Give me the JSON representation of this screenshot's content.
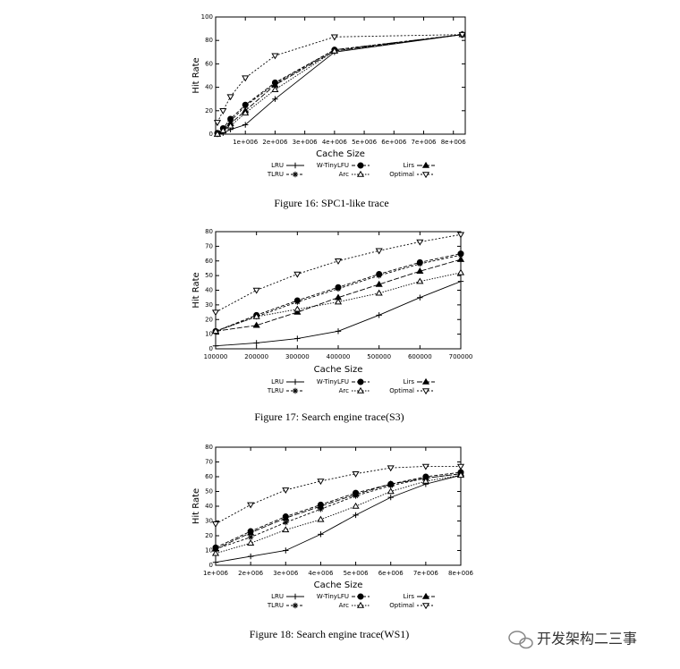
{
  "chart_data": [
    {
      "type": "line",
      "caption": "Figure 16: SPC1-like trace",
      "xlabel": "Cache Size",
      "ylabel": "Hit Rate",
      "x": [
        60000,
        250000,
        500000,
        1000000,
        2000000,
        4000000,
        8300000
      ],
      "xlim": [
        0,
        8400000
      ],
      "xticks": [
        {
          "value": 1000000,
          "label": "1e+006"
        },
        {
          "value": 2000000,
          "label": "2e+006"
        },
        {
          "value": 3000000,
          "label": "3e+006"
        },
        {
          "value": 4000000,
          "label": "4e+006"
        },
        {
          "value": 5000000,
          "label": "5e+006"
        },
        {
          "value": 6000000,
          "label": "6e+006"
        },
        {
          "value": 7000000,
          "label": "7e+006"
        },
        {
          "value": 8000000,
          "label": "8e+006"
        }
      ],
      "ylim": [
        0,
        100
      ],
      "yticks": [
        0,
        20,
        40,
        60,
        80,
        100
      ],
      "series": [
        {
          "name": "LRU",
          "color": "#000000",
          "values": [
            0,
            1,
            4,
            8,
            30,
            70,
            85
          ]
        },
        {
          "name": "W-TinyLFU",
          "color": "#000000",
          "values": [
            1,
            5,
            13,
            25,
            44,
            72,
            85
          ]
        },
        {
          "name": "Lirs",
          "color": "#000000",
          "values": [
            0,
            3,
            9,
            20,
            42,
            71,
            85
          ]
        },
        {
          "name": "TLRU",
          "color": "#000000",
          "values": [
            1,
            4,
            11,
            24,
            43,
            72,
            85
          ]
        },
        {
          "name": "Arc",
          "color": "#000000",
          "values": [
            0,
            3,
            7,
            18,
            38,
            71,
            85
          ]
        },
        {
          "name": "Optimal",
          "color": "#000000",
          "values": [
            10,
            20,
            32,
            48,
            67,
            83,
            85
          ]
        }
      ]
    },
    {
      "type": "line",
      "caption": "Figure 17: Search engine trace(S3)",
      "xlabel": "Cache Size",
      "ylabel": "Hit Rate",
      "x": [
        100000,
        200000,
        300000,
        400000,
        500000,
        600000,
        700000
      ],
      "xlim": [
        100000,
        700000
      ],
      "xticks": [
        100000,
        200000,
        300000,
        400000,
        500000,
        600000,
        700000
      ],
      "ylim": [
        0,
        80
      ],
      "yticks": [
        0,
        10,
        20,
        30,
        40,
        50,
        60,
        70,
        80
      ],
      "series": [
        {
          "name": "LRU",
          "color": "#000000",
          "values": [
            2,
            4,
            7,
            12,
            23,
            35,
            46
          ]
        },
        {
          "name": "W-TinyLFU",
          "color": "#000000",
          "values": [
            12,
            23,
            33,
            42,
            51,
            59,
            65
          ]
        },
        {
          "name": "Lirs",
          "color": "#000000",
          "values": [
            12,
            16,
            25,
            35,
            44,
            53,
            61
          ]
        },
        {
          "name": "TLRU",
          "color": "#000000",
          "values": [
            12,
            22,
            32,
            41,
            50,
            58,
            64
          ]
        },
        {
          "name": "Arc",
          "color": "#000000",
          "values": [
            12,
            22,
            27,
            32,
            38,
            46,
            52
          ]
        },
        {
          "name": "Optimal",
          "color": "#000000",
          "values": [
            25,
            40,
            51,
            60,
            67,
            73,
            78
          ]
        }
      ]
    },
    {
      "type": "line",
      "caption": "Figure 18: Search engine trace(WS1)",
      "xlabel": "Cache Size",
      "ylabel": "Hit Rate",
      "x": [
        1000000,
        2000000,
        3000000,
        4000000,
        5000000,
        6000000,
        7000000,
        8000000
      ],
      "xlim": [
        1000000,
        8000000
      ],
      "xticks": [
        {
          "value": 1000000,
          "label": "1e+006"
        },
        {
          "value": 2000000,
          "label": "2e+006"
        },
        {
          "value": 3000000,
          "label": "3e+006"
        },
        {
          "value": 4000000,
          "label": "4e+006"
        },
        {
          "value": 5000000,
          "label": "5e+006"
        },
        {
          "value": 6000000,
          "label": "6e+006"
        },
        {
          "value": 7000000,
          "label": "7e+006"
        },
        {
          "value": 8000000,
          "label": "8e+006"
        }
      ],
      "ylim": [
        0,
        80
      ],
      "yticks": [
        0,
        10,
        20,
        30,
        40,
        50,
        60,
        70,
        80
      ],
      "series": [
        {
          "name": "LRU",
          "color": "#000000",
          "values": [
            2,
            6,
            10,
            21,
            34,
            46,
            55,
            61
          ]
        },
        {
          "name": "W-TinyLFU",
          "color": "#000000",
          "values": [
            12,
            23,
            33,
            41,
            49,
            55,
            60,
            63
          ]
        },
        {
          "name": "Lirs",
          "color": "#000000",
          "values": [
            11,
            22,
            32,
            40,
            48,
            55,
            59,
            62
          ]
        },
        {
          "name": "TLRU",
          "color": "#000000",
          "values": [
            11,
            19,
            29,
            38,
            47,
            54,
            59,
            62
          ]
        },
        {
          "name": "Arc",
          "color": "#000000",
          "values": [
            8,
            15,
            24,
            31,
            40,
            50,
            57,
            61
          ]
        },
        {
          "name": "Optimal",
          "color": "#000000",
          "values": [
            28,
            41,
            51,
            57,
            62,
            66,
            67,
            67
          ]
        }
      ]
    }
  ],
  "watermark": "开发架构二三事"
}
